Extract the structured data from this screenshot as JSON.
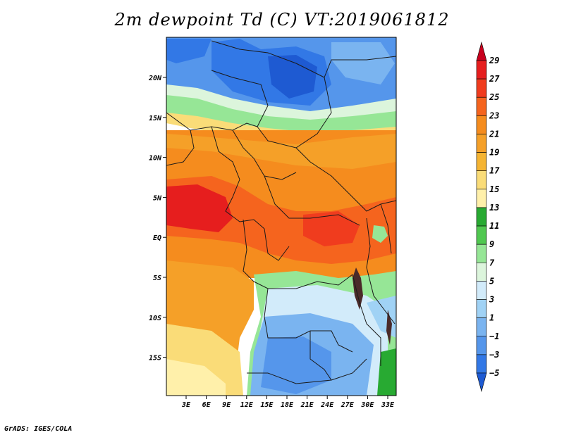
{
  "title": "2m dewpoint Td (C) VT:2019061812",
  "credit": "GrADS: IGES/COLA",
  "map": {
    "lat_labels": [
      "20N",
      "15N",
      "10N",
      "5N",
      "EQ",
      "5S",
      "10S",
      "15S"
    ],
    "lon_labels": [
      "3E",
      "6E",
      "9E",
      "12E",
      "15E",
      "18E",
      "21E",
      "24E",
      "27E",
      "30E",
      "33E"
    ],
    "colors": {
      "frame": "#000000",
      "border": "#1a1a1a",
      "lake": "#4a2a2a"
    }
  },
  "colorbar": {
    "labels": [
      "29",
      "27",
      "25",
      "23",
      "21",
      "19",
      "17",
      "15",
      "13",
      "11",
      "9",
      "7",
      "5",
      "3",
      "1",
      "−1",
      "−3",
      "−5"
    ],
    "colors_top_to_bottom": [
      "#c8001e",
      "#e61e1e",
      "#f03c1e",
      "#f5641e",
      "#f58c1e",
      "#f5a028",
      "#f5b432",
      "#fadc78",
      "#fff0aa",
      "#28aa32",
      "#50c850",
      "#96e696",
      "#dcf5dc",
      "#d2ebfa",
      "#a0d2f5",
      "#7ab4f0",
      "#5596eb",
      "#3278e6",
      "#1e5ad2"
    ]
  }
}
